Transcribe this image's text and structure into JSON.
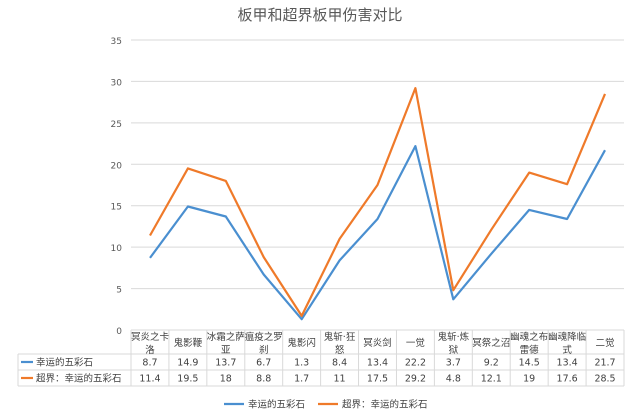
{
  "chart_data": {
    "type": "line",
    "title": "板甲和超界板甲伤害对比",
    "categories": [
      [
        "冥炎之卡",
        "洛"
      ],
      [
        "鬼影鞭"
      ],
      [
        "冰霜之萨",
        "亚"
      ],
      [
        "瘟疫之罗",
        "刹"
      ],
      [
        "鬼影闪"
      ],
      [
        "鬼斩·狂",
        "怒"
      ],
      [
        "冥炎剑"
      ],
      [
        "一觉"
      ],
      [
        "鬼斩·炼",
        "狱"
      ],
      [
        "冥祭之沼"
      ],
      [
        "幽魂之布",
        "雷德"
      ],
      [
        "幽魂降临",
        "式"
      ],
      [
        "二觉"
      ]
    ],
    "series": [
      {
        "name": "幸运的五彩石",
        "color": "#4a8fd0",
        "values": [
          8.7,
          14.9,
          13.7,
          6.7,
          1.3,
          8.4,
          13.4,
          22.2,
          3.7,
          9.2,
          14.5,
          13.4,
          21.7
        ]
      },
      {
        "name": "超界：幸运的五彩石",
        "color": "#ef7a2a",
        "values": [
          11.4,
          19.5,
          18,
          8.8,
          1.7,
          11,
          17.5,
          29.2,
          4.8,
          12.1,
          19,
          17.6,
          28.5
        ]
      }
    ],
    "ylim": [
      0,
      35
    ],
    "yticks": [
      0,
      5,
      10,
      15,
      20,
      25,
      30,
      35
    ],
    "grid": true,
    "legend": "bottom",
    "data_table": true
  }
}
